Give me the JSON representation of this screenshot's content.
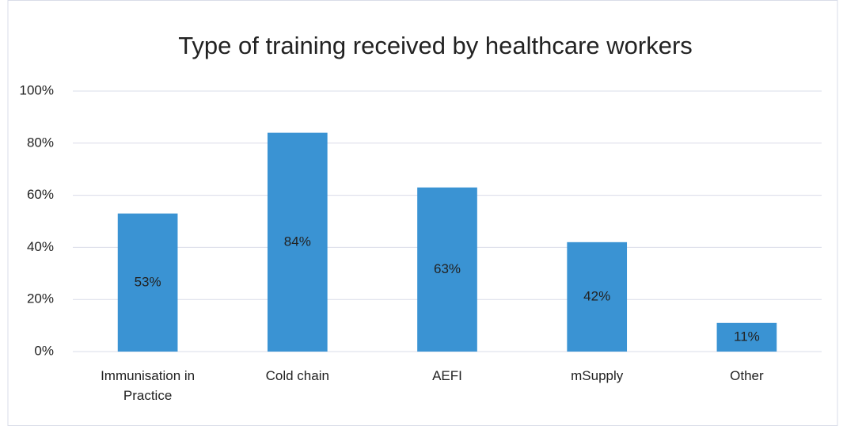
{
  "chart_data": {
    "type": "bar",
    "title": "Type of training received by healthcare workers",
    "categories": [
      "Immunisation in Practice",
      "Cold chain",
      "AEFI",
      "mSupply",
      "Other"
    ],
    "values": [
      53,
      84,
      63,
      42,
      11
    ],
    "value_labels": [
      "53%",
      "84%",
      "63%",
      "42%",
      "11%"
    ],
    "color": "#3a93d3",
    "ylim": [
      0,
      100
    ],
    "yticks": [
      {
        "value": 0,
        "label": "0%"
      },
      {
        "value": 20,
        "label": "20%"
      },
      {
        "value": 40,
        "label": "40%"
      },
      {
        "value": 60,
        "label": "60%"
      },
      {
        "value": 80,
        "label": "80%"
      },
      {
        "value": 100,
        "label": "100%"
      }
    ],
    "grid": true
  }
}
